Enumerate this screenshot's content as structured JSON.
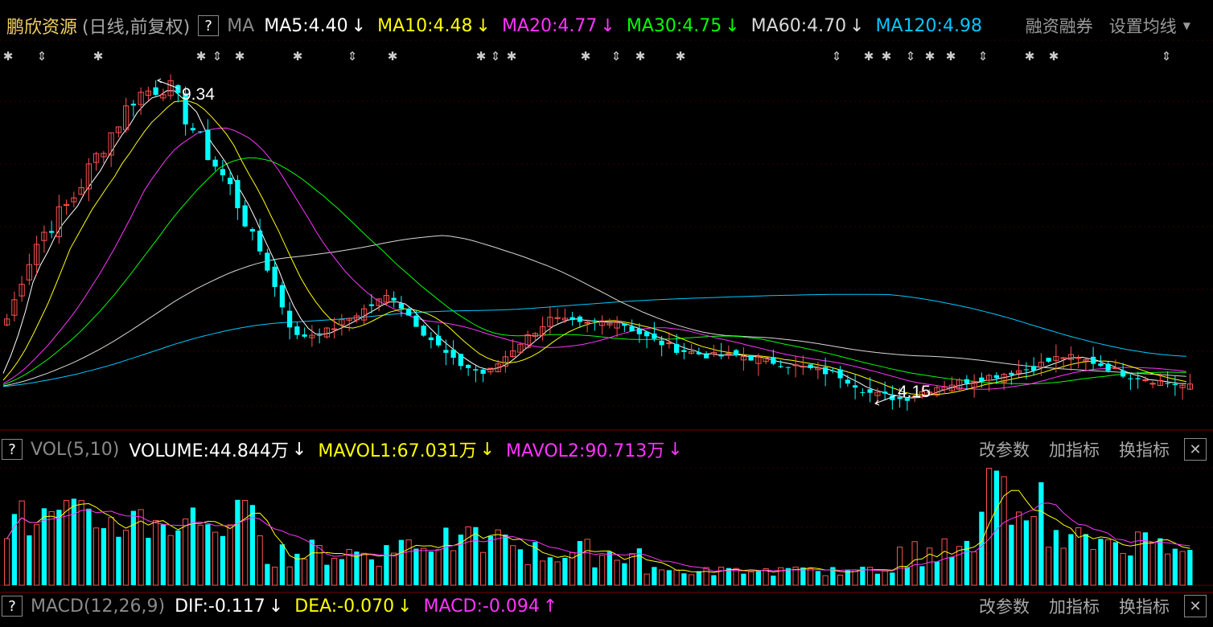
{
  "header": {
    "stock_name": "鹏欣资源",
    "period": "(日线,前复权)",
    "help": "?",
    "indicator": "MA",
    "ma_values": [
      {
        "label": "MA5:4.40",
        "arrow": "↓",
        "color": "#ffffff"
      },
      {
        "label": "MA10:4.48",
        "arrow": "↓",
        "color": "#ffff00"
      },
      {
        "label": "MA20:4.77",
        "arrow": "↓",
        "color": "#ff33ff"
      },
      {
        "label": "MA30:4.75",
        "arrow": "↓",
        "color": "#00ff00"
      },
      {
        "label": "MA60:4.70",
        "arrow": "↓",
        "color": "#d8d8d8"
      },
      {
        "label": "MA120:4.98",
        "arrow": "",
        "color": "#00c8ff"
      }
    ],
    "margin_trading": "融资融券",
    "set_ma": "设置均线"
  },
  "volume_panel": {
    "help": "?",
    "name": "VOL(5,10)",
    "volume": "VOLUME:44.844万",
    "volume_arrow": "↓",
    "mavol1": "MAVOL1:67.031万",
    "mavol1_arrow": "↓",
    "mavol2": "MAVOL2:90.713万",
    "mavol2_arrow": "↓",
    "btn_params": "改参数",
    "btn_add": "加指标",
    "btn_switch": "换指标",
    "close": "✕"
  },
  "macd_panel": {
    "help": "?",
    "name": "MACD(12,26,9)",
    "dif": "DIF:-0.117",
    "dif_arrow": "↓",
    "dea": "DEA:-0.070",
    "dea_arrow": "↓",
    "macd": "MACD:-0.094",
    "macd_arrow": "↑",
    "btn_params": "改参数",
    "btn_add": "加指标",
    "btn_switch": "换指标",
    "close": "✕"
  },
  "colors": {
    "up": "#ff5050",
    "down": "#00ffff",
    "ma5": "#ffffff",
    "ma10": "#ffff00",
    "ma20": "#ff33ff",
    "ma30": "#00ff00",
    "ma60": "#d8d8d8",
    "ma120": "#00c8ff"
  },
  "chart_data": {
    "type": "candlestick",
    "title": "鹏欣资源",
    "price_range": [
      3.9,
      10.0
    ],
    "annotations": [
      {
        "label": "9.34",
        "type": "high"
      },
      {
        "label": "4.15",
        "type": "low"
      }
    ],
    "close_anchors": [
      5.5,
      6.8,
      7.4,
      8.3,
      9.1,
      9.3,
      8.4,
      7.6,
      6.5,
      5.2,
      5.3,
      5.6,
      5.9,
      5.3,
      4.8,
      4.6,
      5.1,
      5.5,
      5.4,
      5.5,
      5.2,
      5.0,
      4.9,
      4.9,
      4.8,
      4.7,
      4.6,
      4.3,
      4.2,
      4.4,
      4.5,
      4.6,
      4.7,
      4.9,
      4.8,
      4.6,
      4.5,
      4.4
    ]
  }
}
